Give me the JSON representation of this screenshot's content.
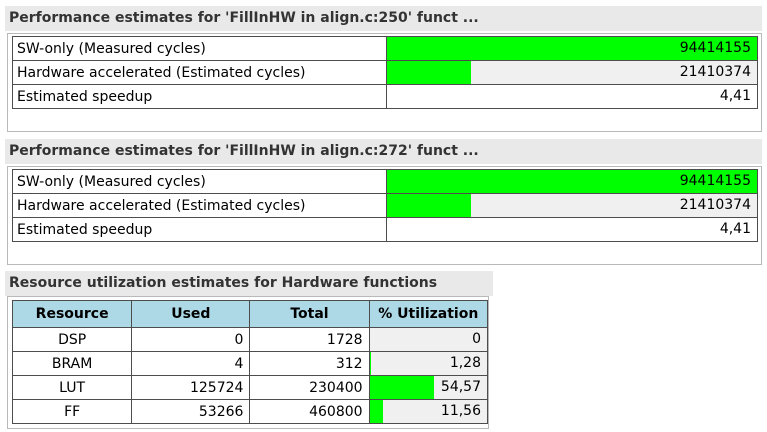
{
  "perf1": {
    "title": "Performance estimates for 'FillInHW in align.c:250' funct ...",
    "rows": [
      {
        "label": "SW-only (Measured cycles)",
        "value": "94414155",
        "fill": 1.0
      },
      {
        "label": "Hardware accelerated (Estimated cycles)",
        "value": "21410374",
        "fill": 0.227
      },
      {
        "label": "Estimated speedup",
        "value": "4,41"
      }
    ]
  },
  "perf2": {
    "title": "Performance estimates for 'FillInHW in align.c:272' funct ...",
    "rows": [
      {
        "label": "SW-only (Measured cycles)",
        "value": "94414155",
        "fill": 1.0
      },
      {
        "label": "Hardware accelerated (Estimated cycles)",
        "value": "21410374",
        "fill": 0.227
      },
      {
        "label": "Estimated speedup",
        "value": "4,41"
      }
    ]
  },
  "resources": {
    "title": "Resource utilization estimates for Hardware functions",
    "headers": [
      "Resource",
      "Used",
      "Total",
      "% Utilization"
    ],
    "rows": [
      {
        "name": "DSP",
        "used": "0",
        "total": "1728",
        "util": "0",
        "fill": 0.0
      },
      {
        "name": "BRAM",
        "used": "4",
        "total": "312",
        "util": "1,28",
        "fill": 0.0128
      },
      {
        "name": "LUT",
        "used": "125724",
        "total": "230400",
        "util": "54,57",
        "fill": 0.5457
      },
      {
        "name": "FF",
        "used": "53266",
        "total": "460800",
        "util": "11,56",
        "fill": 0.1156
      }
    ]
  },
  "colors": {
    "bar_fill": "#00ff00",
    "bar_bg": "#f0f0f0",
    "header_bg": "#add8e6"
  }
}
